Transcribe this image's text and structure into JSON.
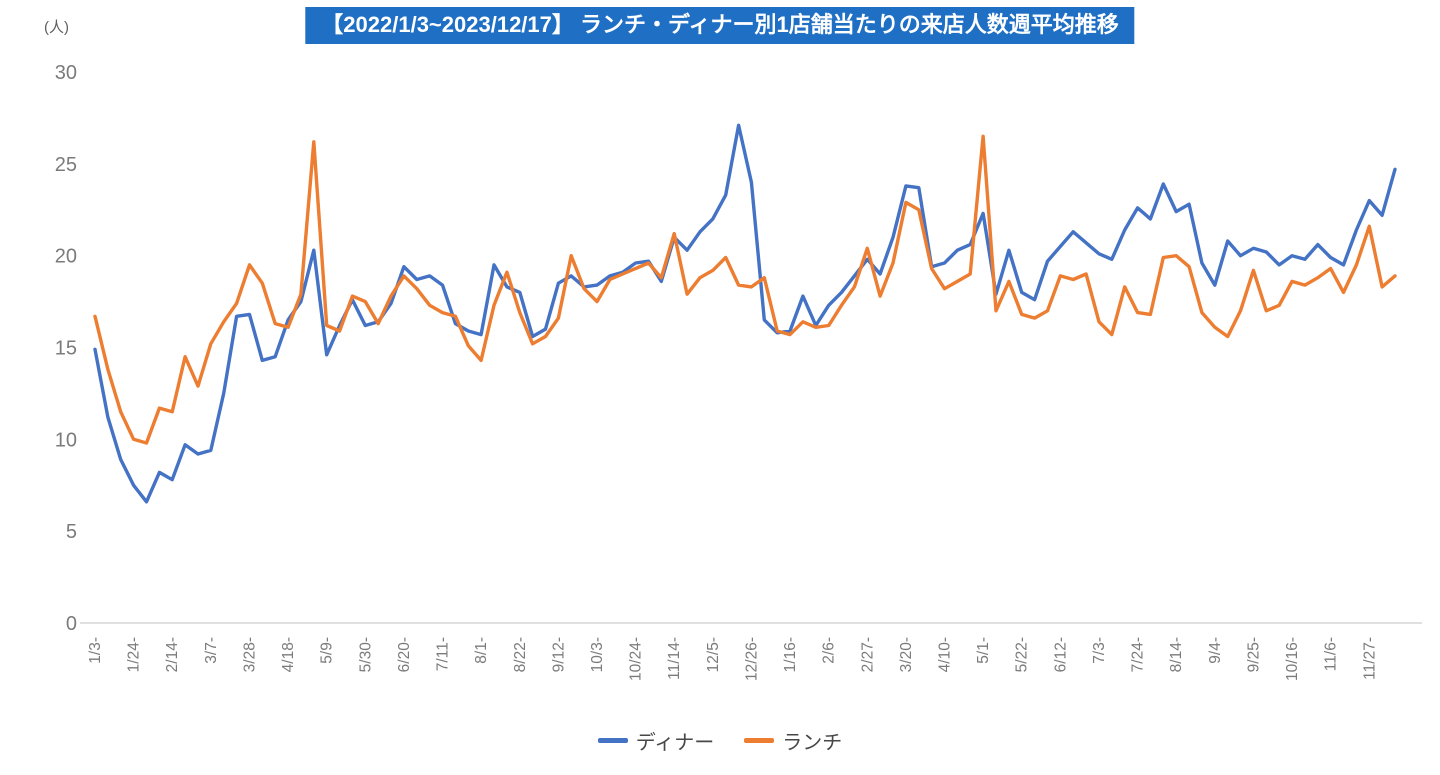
{
  "title": {
    "text": "【2022/1/3~2023/12/17】 ランチ・ディナー別1店舗当たりの来店人数週平均推移",
    "bg_color": "#1f6fc4",
    "text_color": "#ffffff"
  },
  "chart_data": {
    "type": "line",
    "title": "【2022/1/3~2023/12/17】 ランチ・ディナー別1店舗当たりの来店人数週平均推移",
    "xlabel": "",
    "ylabel": "(人)",
    "ylim": [
      0,
      30
    ],
    "yticks": [
      0,
      5,
      10,
      15,
      20,
      25,
      30
    ],
    "grid": false,
    "legend_position": "bottom",
    "tick_every": 3,
    "x_tick_labels": [
      "1/3-",
      "1/24-",
      "2/14-",
      "3/7-",
      "3/28-",
      "4/18-",
      "5/9-",
      "5/30-",
      "6/20-",
      "7/11-",
      "8/1-",
      "8/22-",
      "9/12-",
      "10/3-",
      "10/24-",
      "11/14-",
      "12/5-",
      "12/26-",
      "1/16-",
      "2/6-",
      "2/27-",
      "3/20-",
      "4/10-",
      "5/1-",
      "5/22-",
      "6/12-",
      "7/3-",
      "7/24-",
      "8/14-",
      "9/4-",
      "9/25-",
      "10/16-",
      "11/6-",
      "11/27-"
    ],
    "series": [
      {
        "name": "ディナー",
        "color": "#4472C4",
        "values": [
          14.9,
          11.2,
          8.9,
          7.5,
          6.6,
          8.2,
          7.8,
          9.7,
          9.2,
          9.4,
          12.5,
          16.7,
          16.8,
          14.3,
          14.5,
          16.5,
          17.5,
          20.3,
          14.6,
          16.2,
          17.6,
          16.2,
          16.4,
          17.4,
          19.4,
          18.7,
          18.9,
          18.4,
          16.3,
          15.9,
          15.7,
          19.5,
          18.3,
          18.0,
          15.6,
          16.0,
          18.5,
          18.9,
          18.3,
          18.4,
          18.9,
          19.1,
          19.6,
          19.7,
          18.6,
          21.0,
          20.3,
          21.3,
          22.0,
          23.3,
          27.1,
          24.0,
          16.5,
          15.8,
          15.9,
          17.8,
          16.2,
          17.3,
          18.0,
          18.9,
          19.8,
          19.0,
          21.0,
          23.8,
          23.7,
          19.4,
          19.6,
          20.3,
          20.6,
          22.3,
          17.9,
          20.3,
          18.0,
          17.6,
          19.7,
          20.5,
          21.3,
          20.7,
          20.1,
          19.8,
          21.4,
          22.6,
          22.0,
          23.9,
          22.4,
          22.8,
          19.6,
          18.4,
          20.8,
          20.0,
          20.4,
          20.2,
          19.5,
          20.0,
          19.8,
          20.6,
          19.9,
          19.5,
          21.4,
          23.0,
          22.2,
          24.7
        ]
      },
      {
        "name": "ランチ",
        "color": "#ED7D31",
        "values": [
          16.7,
          13.8,
          11.5,
          10.0,
          9.8,
          11.7,
          11.5,
          14.5,
          12.9,
          15.2,
          16.4,
          17.4,
          19.5,
          18.5,
          16.3,
          16.1,
          17.9,
          26.2,
          16.2,
          15.9,
          17.8,
          17.5,
          16.3,
          17.8,
          18.9,
          18.2,
          17.3,
          16.9,
          16.7,
          15.1,
          14.3,
          17.3,
          19.1,
          16.9,
          15.2,
          15.6,
          16.6,
          20.0,
          18.2,
          17.5,
          18.7,
          19.0,
          19.3,
          19.6,
          18.8,
          21.2,
          17.9,
          18.8,
          19.2,
          19.9,
          18.4,
          18.3,
          18.8,
          15.9,
          15.7,
          16.4,
          16.1,
          16.2,
          17.3,
          18.3,
          20.4,
          17.8,
          19.6,
          22.9,
          22.5,
          19.3,
          18.2,
          18.6,
          19.0,
          26.5,
          17.0,
          18.6,
          16.8,
          16.6,
          17.0,
          18.9,
          18.7,
          19.0,
          16.4,
          15.7,
          18.3,
          16.9,
          16.8,
          19.9,
          20.0,
          19.4,
          16.9,
          16.1,
          15.6,
          17.0,
          19.2,
          17.0,
          17.3,
          18.6,
          18.4,
          18.8,
          19.3,
          18.0,
          19.5,
          21.6,
          18.3,
          18.9
        ]
      }
    ]
  },
  "legend": {
    "items": [
      {
        "label": "ディナー"
      },
      {
        "label": "ランチ"
      }
    ]
  }
}
